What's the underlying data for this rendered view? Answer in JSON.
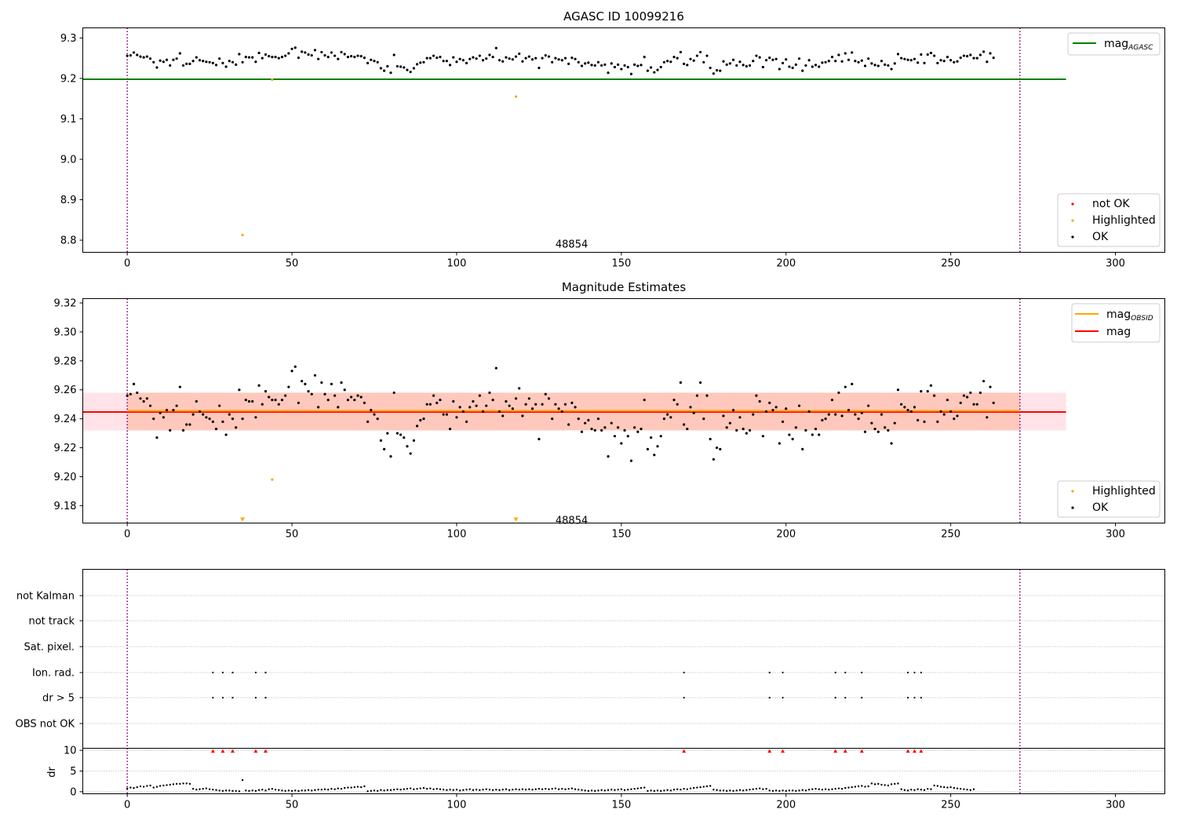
{
  "chart_data": [
    {
      "type": "scatter",
      "panel": "agasc",
      "title": "AGASC ID 10099216",
      "xlim": [
        -13.5,
        315
      ],
      "ylim": [
        8.77,
        9.325
      ],
      "xticks": [
        0,
        50,
        100,
        150,
        200,
        250,
        300
      ],
      "yticks": [
        8.8,
        8.9,
        9.0,
        9.1,
        9.2,
        9.3
      ],
      "ytick_labels": [
        "8.8",
        "8.9",
        "9.0",
        "9.1",
        "9.2",
        "9.3"
      ],
      "obsid_annotation": {
        "text": "48854",
        "x": 130,
        "y": 8.79
      },
      "vlines": [
        0,
        271
      ],
      "hline": {
        "name": "mag_AGASC",
        "value": 9.198,
        "x_range": [
          -13.5,
          285
        ],
        "color": "#008000"
      },
      "highlighted_points": [
        [
          35,
          8.813
        ],
        [
          44,
          9.197
        ],
        [
          118,
          9.155
        ]
      ],
      "ok_y": [
        9.256,
        9.257,
        9.264,
        9.258,
        9.254,
        9.252,
        9.254,
        9.249,
        9.24,
        9.227,
        9.244,
        9.241,
        9.246,
        9.232,
        9.246,
        9.249,
        9.262,
        9.232,
        9.236,
        9.236,
        9.243,
        9.252,
        9.245,
        9.243,
        9.241,
        9.24,
        9.238,
        9.233,
        9.249,
        9.238,
        9.229,
        9.243,
        9.24,
        9.234,
        9.26,
        9.24,
        9.253,
        9.252,
        9.252,
        9.241,
        9.263,
        9.25,
        9.259,
        9.255,
        9.253,
        9.253,
        9.25,
        9.253,
        9.256,
        9.262,
        9.273,
        9.276,
        9.251,
        9.266,
        9.264,
        9.259,
        9.257,
        9.27,
        9.248,
        9.265,
        9.257,
        9.253,
        9.264,
        9.256,
        9.248,
        9.265,
        9.26,
        9.253,
        9.255,
        9.253,
        9.256,
        9.255,
        9.251,
        9.238,
        9.246,
        9.243,
        9.24,
        9.225,
        9.219,
        9.23,
        9.214,
        9.258,
        9.23,
        9.229,
        9.227,
        9.221,
        9.216,
        9.225,
        9.235,
        9.239,
        9.24,
        9.25,
        9.25,
        9.256,
        9.251,
        9.253,
        9.243,
        9.243,
        9.233,
        9.252,
        9.241,
        9.248,
        9.245,
        9.238,
        9.248,
        9.252,
        9.249,
        9.256,
        9.245,
        9.249,
        9.258,
        9.253,
        9.275,
        9.245,
        9.242,
        9.252,
        9.249,
        9.247,
        9.254,
        9.261,
        9.242,
        9.25,
        9.254,
        9.247,
        9.25,
        9.226,
        9.25,
        9.257,
        9.254,
        9.24,
        9.25,
        9.247,
        9.245,
        9.25,
        9.236,
        9.251,
        9.248,
        9.24,
        9.231,
        9.237,
        9.239,
        9.233,
        9.232,
        9.24,
        9.232,
        9.234,
        9.214,
        9.237,
        9.228,
        9.234,
        9.223,
        9.232,
        9.228,
        9.211,
        9.234,
        9.231,
        9.233,
        9.253,
        9.219,
        9.227,
        9.215,
        9.221,
        9.228,
        9.24,
        9.243,
        9.241,
        9.253,
        9.25,
        9.265,
        9.236,
        9.233,
        9.248,
        9.244,
        9.256,
        9.265,
        9.24,
        9.256,
        9.226,
        9.212,
        9.22,
        9.219,
        9.242,
        9.234,
        9.237,
        9.246,
        9.232,
        9.241,
        9.233,
        9.23,
        9.232,
        9.243,
        9.256,
        9.252,
        9.228,
        9.245,
        9.251,
        9.246,
        9.248,
        9.223,
        9.238,
        9.247,
        9.229,
        9.226,
        9.234,
        9.249,
        9.219,
        9.232,
        9.245,
        9.229,
        9.233,
        9.229,
        9.239,
        9.24,
        9.243,
        9.253,
        9.243,
        9.258,
        9.242,
        9.262,
        9.246,
        9.264,
        9.243,
        9.24,
        9.244,
        9.231,
        9.249,
        9.237,
        9.233,
        9.231,
        9.243,
        9.234,
        9.232,
        9.223,
        9.237,
        9.26,
        9.25,
        9.248,
        9.246,
        9.245,
        9.248,
        9.239,
        9.259,
        9.238,
        9.259,
        9.263,
        9.256,
        9.238,
        9.245,
        9.243,
        9.253,
        9.245,
        9.24,
        9.242,
        9.251,
        9.256,
        9.255,
        9.258,
        9.25,
        9.25,
        9.258,
        9.266,
        9.241,
        9.262,
        9.251
      ],
      "legends": [
        {
          "placement": "upper-right",
          "entries": [
            {
              "label": "mag",
              "sub": "AGASC",
              "color": "#008000",
              "marker": "line"
            }
          ]
        },
        {
          "placement": "lower-right",
          "entries": [
            {
              "label": "not OK",
              "color": "#ff0000",
              "marker": "dot"
            },
            {
              "label": "Highlighted",
              "color": "#ffa500",
              "marker": "dot"
            },
            {
              "label": "OK",
              "color": "#000000",
              "marker": "dot"
            }
          ]
        }
      ]
    },
    {
      "type": "scatter",
      "panel": "estimates",
      "title": "Magnitude Estimates",
      "xlim": [
        -13.5,
        315
      ],
      "ylim": [
        9.168,
        9.323
      ],
      "xticks": [
        0,
        50,
        100,
        150,
        200,
        250,
        300
      ],
      "yticks": [
        9.18,
        9.2,
        9.22,
        9.24,
        9.26,
        9.28,
        9.3,
        9.32
      ],
      "ytick_labels": [
        "9.18",
        "9.20",
        "9.22",
        "9.24",
        "9.26",
        "9.28",
        "9.30",
        "9.32"
      ],
      "obsid_annotation": {
        "text": "48854",
        "x": 130,
        "y": 9.17
      },
      "vlines": [
        0,
        271
      ],
      "mag_line": {
        "name": "mag",
        "value": 9.2447,
        "x_range": [
          -13.5,
          285
        ],
        "color": "#ff0000",
        "band": [
          9.232,
          9.258
        ],
        "band_color": "#ffc0cb"
      },
      "mag_obsid_line": {
        "name": "mag_OBSID",
        "value": 9.2447,
        "x_range": [
          0,
          271
        ],
        "color": "#ffa500",
        "band": [
          9.232,
          9.258
        ],
        "band_color": "#ffa07a"
      },
      "highlighted_points": [
        [
          44,
          9.198
        ]
      ],
      "highlighted_clipped_x": [
        35,
        118
      ],
      "legends": [
        {
          "placement": "upper-right",
          "entries": [
            {
              "label": "mag",
              "sub": "OBSID",
              "color": "#ffa500",
              "marker": "line"
            },
            {
              "label": "mag",
              "color": "#ff0000",
              "marker": "line"
            }
          ]
        },
        {
          "placement": "lower-right",
          "entries": [
            {
              "label": "Highlighted",
              "color": "#ffa500",
              "marker": "dot"
            },
            {
              "label": "OK",
              "color": "#000000",
              "marker": "dot"
            }
          ]
        }
      ]
    },
    {
      "type": "scatter",
      "panel": "flags",
      "xlim": [
        -13.5,
        315
      ],
      "xticks": [
        0,
        50,
        100,
        150,
        200,
        250,
        300
      ],
      "categories": [
        "not Kalman",
        "not track",
        "Sat. pixel.",
        "Ion. rad.",
        "dr > 5",
        "OBS not OK"
      ],
      "vlines": [
        0,
        271
      ],
      "flag_x": {
        "Ion. rad.": [
          26,
          29,
          32,
          39,
          42,
          169,
          195,
          199,
          215,
          218,
          223,
          237,
          239,
          241
        ],
        "dr > 5": [
          26,
          29,
          32,
          39,
          42,
          169,
          195,
          199,
          215,
          218,
          223,
          237,
          239,
          241
        ]
      }
    },
    {
      "type": "scatter",
      "panel": "dr",
      "ylabel": "dr",
      "xlim": [
        -13.5,
        315
      ],
      "ylim": [
        -0.5,
        10.5
      ],
      "xticks": [
        0,
        50,
        100,
        150,
        200,
        250,
        300
      ],
      "xtick_labels": [
        "0",
        "50",
        "100",
        "150",
        "200",
        "250",
        "300"
      ],
      "yticks": [
        0,
        5,
        10
      ],
      "ytick_labels": [
        "0",
        "5",
        "10"
      ],
      "vlines": [
        0,
        271
      ],
      "clipped_x": [
        26,
        29,
        32,
        39,
        42,
        169,
        195,
        199,
        215,
        218,
        223,
        237,
        239,
        241
      ],
      "dr_y": [
        0.8,
        1.0,
        0.9,
        1.1,
        1.3,
        1.2,
        1.4,
        1.5,
        1.0,
        1.2,
        1.4,
        1.5,
        1.6,
        1.7,
        1.8,
        1.9,
        1.9,
        2.0,
        2.0,
        1.9,
        0.7,
        0.5,
        0.6,
        0.7,
        0.8,
        0.6,
        0.5,
        0.4,
        0.3,
        0.2,
        0.3,
        0.3,
        0.2,
        0.2,
        0.1,
        2.8,
        0.3,
        0.2,
        0.3,
        0.2,
        0.4,
        0.5,
        0.3,
        0.6,
        0.7,
        0.5,
        0.4,
        0.3,
        0.2,
        0.3,
        0.2,
        0.3,
        0.2,
        0.3,
        0.3,
        0.4,
        0.3,
        0.4,
        0.5,
        0.5,
        0.6,
        0.5,
        0.7,
        0.6,
        0.8,
        0.7,
        0.9,
        1.0,
        1.0,
        1.1,
        1.2,
        1.1,
        1.3,
        0.1,
        0.2,
        0.3,
        0.2,
        0.4,
        0.3,
        0.4,
        0.4,
        0.5,
        0.6,
        0.5,
        0.6,
        0.7,
        0.8,
        0.6,
        0.7,
        0.8,
        0.9,
        0.7,
        0.8,
        0.6,
        0.7,
        0.6,
        0.5,
        0.4,
        0.5,
        0.4,
        0.5,
        0.3,
        0.4,
        0.5,
        0.6,
        0.4,
        0.5,
        0.4,
        0.5,
        0.6,
        0.5,
        0.4,
        0.5,
        0.4,
        0.5,
        0.6,
        0.4,
        0.5,
        0.6,
        0.5,
        0.6,
        0.5,
        0.6,
        0.5,
        0.6,
        0.7,
        0.6,
        0.7,
        0.6,
        0.7,
        0.8,
        0.6,
        0.7,
        0.6,
        0.7,
        0.8,
        0.6,
        0.5,
        0.4,
        0.3,
        0.2,
        0.3,
        0.2,
        0.3,
        0.4,
        0.3,
        0.4,
        0.5,
        0.4,
        0.5,
        0.6,
        0.4,
        0.5,
        0.6,
        0.7,
        0.8,
        0.9,
        1.0,
        0.2,
        0.3,
        0.2,
        0.3,
        0.2,
        0.3,
        0.4,
        0.3,
        0.5,
        0.6,
        0.5,
        0.7,
        0.6,
        0.8,
        0.9,
        1.0,
        1.1,
        1.2,
        1.3,
        1.4,
        0.5,
        0.4,
        0.3,
        0.3,
        0.2,
        0.3,
        0.2,
        0.3,
        0.4,
        0.3,
        0.4,
        0.5,
        0.6,
        0.7,
        0.8,
        0.6,
        0.7,
        0.3,
        0.2,
        0.3,
        0.2,
        0.3,
        0.2,
        0.3,
        0.3,
        0.2,
        0.3,
        0.4,
        0.3,
        0.5,
        0.6,
        0.7,
        0.6,
        0.5,
        0.6,
        0.5,
        0.6,
        0.7,
        0.8,
        0.7,
        0.9,
        1.0,
        1.1,
        1.2,
        1.3,
        1.4,
        1.2,
        1.3,
        2.0,
        1.8,
        1.9,
        1.7,
        1.6,
        1.5,
        1.8,
        1.9,
        2.0,
        0.6,
        0.4,
        0.3,
        0.5,
        0.4,
        0.6,
        0.5,
        0.4,
        0.7,
        0.6,
        1.5,
        1.4,
        1.2,
        1.1,
        1.0,
        1.1,
        0.9,
        0.8,
        0.7,
        0.6,
        0.5,
        0.4,
        0.6
      ]
    }
  ],
  "colors": {
    "ok": "#000000",
    "highlighted": "#ffa500",
    "not_ok": "#ff0000",
    "vline": "#800080"
  }
}
